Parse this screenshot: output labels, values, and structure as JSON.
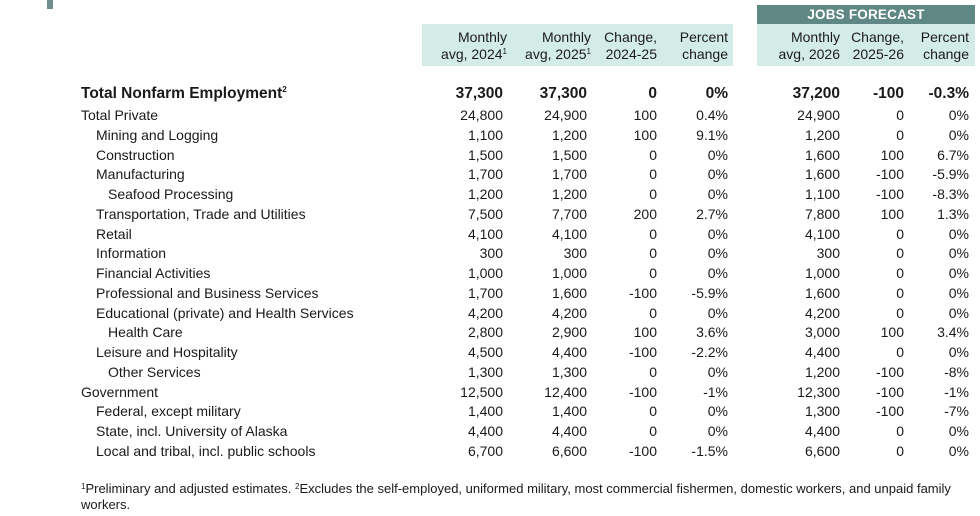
{
  "forecast_title": "JOBS FORECAST",
  "headers": [
    {
      "line1": "Monthly",
      "line2": "avg, 2024",
      "sup": "1"
    },
    {
      "line1": "Monthly",
      "line2": "avg, 2025",
      "sup": "1"
    },
    {
      "line1": "Change,",
      "line2": "2024-25",
      "sup": ""
    },
    {
      "line1": "Percent",
      "line2": "change",
      "sup": ""
    },
    {
      "line1": "Monthly",
      "line2": "avg, 2026",
      "sup": ""
    },
    {
      "line1": "Change,",
      "line2": "2025-26",
      "sup": ""
    },
    {
      "line1": "Percent",
      "line2": "change",
      "sup": ""
    }
  ],
  "rows": [
    {
      "label": "Total Nonfarm Employment",
      "sup": "2",
      "level": 0,
      "bold": true,
      "cells": [
        "37,300",
        "37,300",
        "0",
        "0%",
        "37,200",
        "-100",
        "-0.3%"
      ]
    },
    {
      "label": "Total Private",
      "level": 0,
      "cells": [
        "24,800",
        "24,900",
        "100",
        "0.4%",
        "24,900",
        "0",
        "0%"
      ]
    },
    {
      "label": "Mining and Logging",
      "level": 1,
      "cells": [
        "1,100",
        "1,200",
        "100",
        "9.1%",
        "1,200",
        "0",
        "0%"
      ]
    },
    {
      "label": "Construction",
      "level": 1,
      "cells": [
        "1,500",
        "1,500",
        "0",
        "0%",
        "1,600",
        "100",
        "6.7%"
      ]
    },
    {
      "label": "Manufacturing",
      "level": 1,
      "cells": [
        "1,700",
        "1,700",
        "0",
        "0%",
        "1,600",
        "-100",
        "-5.9%"
      ]
    },
    {
      "label": "Seafood Processing",
      "level": 2,
      "cells": [
        "1,200",
        "1,200",
        "0",
        "0%",
        "1,100",
        "-100",
        "-8.3%"
      ]
    },
    {
      "label": "Transportation, Trade and Utilities",
      "level": 1,
      "cells": [
        "7,500",
        "7,700",
        "200",
        "2.7%",
        "7,800",
        "100",
        "1.3%"
      ]
    },
    {
      "label": "Retail",
      "level": 1,
      "cells": [
        "4,100",
        "4,100",
        "0",
        "0%",
        "4,100",
        "0",
        "0%"
      ]
    },
    {
      "label": "Information",
      "level": 1,
      "cells": [
        "300",
        "300",
        "0",
        "0%",
        "300",
        "0",
        "0%"
      ]
    },
    {
      "label": "Financial Activities",
      "level": 1,
      "cells": [
        "1,000",
        "1,000",
        "0",
        "0%",
        "1,000",
        "0",
        "0%"
      ]
    },
    {
      "label": "Professional and Business Services",
      "level": 1,
      "cells": [
        "1,700",
        "1,600",
        "-100",
        "-5.9%",
        "1,600",
        "0",
        "0%"
      ]
    },
    {
      "label": "Educational (private) and Health Services",
      "level": 1,
      "cells": [
        "4,200",
        "4,200",
        "0",
        "0%",
        "4,200",
        "0",
        "0%"
      ]
    },
    {
      "label": "Health Care",
      "level": 2,
      "cells": [
        "2,800",
        "2,900",
        "100",
        "3.6%",
        "3,000",
        "100",
        "3.4%"
      ]
    },
    {
      "label": "Leisure and Hospitality",
      "level": 1,
      "cells": [
        "4,500",
        "4,400",
        "-100",
        "-2.2%",
        "4,400",
        "0",
        "0%"
      ]
    },
    {
      "label": "Other Services",
      "level": 2,
      "cells": [
        "1,300",
        "1,300",
        "0",
        "0%",
        "1,200",
        "-100",
        "-8%"
      ]
    },
    {
      "label": "Government",
      "level": 0,
      "cells": [
        "12,500",
        "12,400",
        "-100",
        "-1%",
        "12,300",
        "-100",
        "-1%"
      ]
    },
    {
      "label": "Federal, except military",
      "level": 1,
      "cells": [
        "1,400",
        "1,400",
        "0",
        "0%",
        "1,300",
        "-100",
        "-7%"
      ]
    },
    {
      "label": "State, incl. University of Alaska",
      "level": 1,
      "cells": [
        "4,400",
        "4,400",
        "0",
        "0%",
        "4,400",
        "0",
        "0%"
      ]
    },
    {
      "label": "Local and tribal, incl. public schools",
      "level": 1,
      "cells": [
        "6,700",
        "6,600",
        "-100",
        "-1.5%",
        "6,600",
        "0",
        "0%"
      ]
    }
  ],
  "footnote": {
    "sup1": "1",
    "text1": "Preliminary and adjusted estimates. ",
    "sup2": "2",
    "text2": "Excludes the self-employed, uniformed military, most commercial fishermen, domestic workers, and unpaid family workers."
  },
  "colors": {
    "header_bg": "#d4ece8",
    "forecast_title_bg": "#5f8783"
  }
}
